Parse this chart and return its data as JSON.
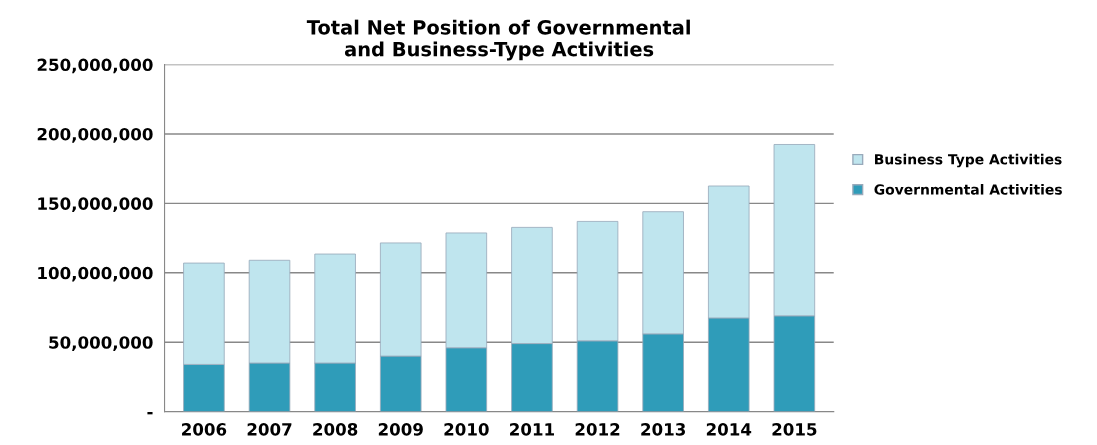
{
  "chart_data": {
    "type": "bar",
    "stacked": true,
    "title": "Total Net Position of Governmental\nand Business-Type Activities",
    "categories": [
      "2006",
      "2007",
      "2008",
      "2009",
      "2010",
      "2011",
      "2012",
      "2013",
      "2014",
      "2015"
    ],
    "series": [
      {
        "name": "Governmental Activities",
        "color": "#2f9cb9",
        "values": [
          34000000,
          35000000,
          35000000,
          40000000,
          46000000,
          49000000,
          51000000,
          56000000,
          67500000,
          69000000
        ]
      },
      {
        "name": "Business Type Activities",
        "color": "#bfe5ee",
        "values": [
          73000000,
          74000000,
          78500000,
          81500000,
          82700000,
          83700000,
          86000000,
          88000000,
          95000000,
          123400000
        ]
      }
    ],
    "ylim": [
      0,
      250000000
    ],
    "yticks": [
      {
        "value": 0,
        "label": "-"
      },
      {
        "value": 50000000,
        "label": "50,000,000"
      },
      {
        "value": 100000000,
        "label": "100,000,000"
      },
      {
        "value": 150000000,
        "label": "150,000,000"
      },
      {
        "value": 200000000,
        "label": "200,000,000"
      },
      {
        "value": 250000000,
        "label": "250,000,000"
      }
    ],
    "grid": "y",
    "legend": "right"
  }
}
